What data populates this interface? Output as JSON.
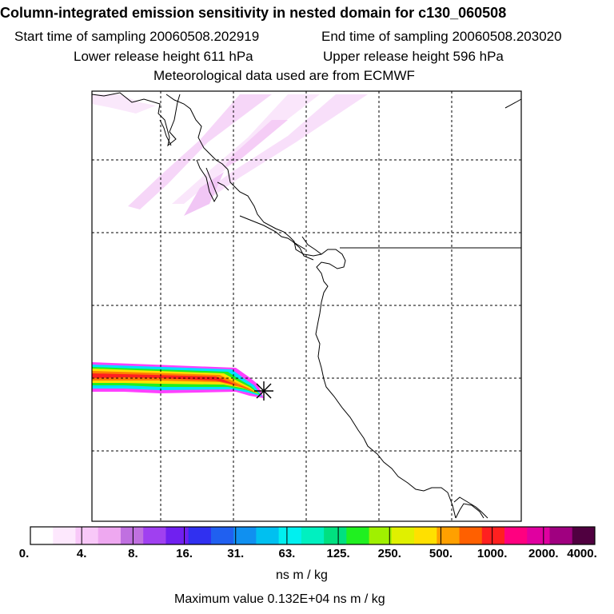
{
  "header": {
    "title": "Column-integrated emission sensitivity in nested domain for c130_060508",
    "start_sampling": "Start time of sampling 20060508.202919",
    "end_sampling": "End time of sampling 20060508.203020",
    "lower_release": "Lower release height  611 hPa",
    "upper_release": "Upper release height  596 hPa",
    "met_data": "Meteorological data used are from ECMWF"
  },
  "colorbar": {
    "labels": [
      "0.",
      "4.",
      "8.",
      "16.",
      "31.",
      "63.",
      "125.",
      "250.",
      "500.",
      "1000.",
      "2000.",
      "4000."
    ],
    "unit": "ns m / kg",
    "colors": [
      "#ffffff",
      "#fde8fd",
      "#f8c8f8",
      "#eea8f0",
      "#c070e0",
      "#a040f0",
      "#7020f0",
      "#3030f0",
      "#2060f0",
      "#1090f0",
      "#00c0f0",
      "#00f0f0",
      "#00f0c0",
      "#00e080",
      "#20f020",
      "#a0f000",
      "#e0f000",
      "#ffe000",
      "#ffa000",
      "#ff6000",
      "#ff2020",
      "#ff0080",
      "#e000a0",
      "#a00080",
      "#500040"
    ]
  },
  "footer": {
    "max_value": "Maximum value  0.132E+04 ns m / kg"
  },
  "map": {
    "release_marker_icon": "asterisk-icon",
    "plume_colors": [
      "#ff40ff",
      "#00e0ff",
      "#20f020",
      "#ffe000",
      "#ff8000",
      "#ff2020"
    ]
  }
}
